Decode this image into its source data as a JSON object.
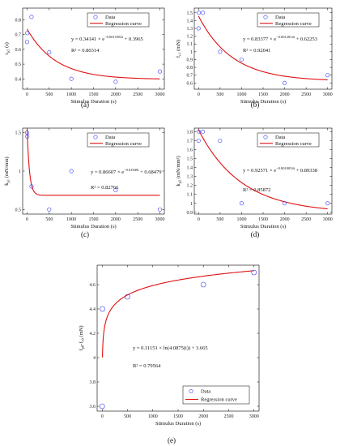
{
  "chart_data": [
    {
      "id": "a",
      "panel_label": "(a)",
      "type": "scatter",
      "xlabel": "Stimulus Duration (s)",
      "ylabel": "τ_p2 (s)",
      "ylabel_main": "τ",
      "ylabel_sub": "p2",
      "ylabel_unit": " (s)",
      "xlim": [
        -100,
        3100
      ],
      "ylim": [
        0.33,
        0.88
      ],
      "xticks": [
        0,
        500,
        1000,
        1500,
        2000,
        2500,
        3000
      ],
      "yticks": [
        0.4,
        0.5,
        0.6,
        0.7,
        0.8
      ],
      "points": [
        [
          0,
          0.65
        ],
        [
          5,
          0.71
        ],
        [
          100,
          0.82
        ],
        [
          500,
          0.58
        ],
        [
          1000,
          0.4
        ],
        [
          2000,
          0.38
        ],
        [
          3000,
          0.45
        ]
      ],
      "curve": {
        "kind": "exp",
        "a": 0.34141,
        "b": -0.0015382,
        "c": 0.3965
      },
      "equation": "y = 0.34141 × e^(−0.0015382t) + 0.3965",
      "equation_parts": {
        "prefix": "y = 0.34141 × e",
        "exponent": "−0.0015382t",
        "suffix": " + 0.3965"
      },
      "r2": "R² = 0.80314",
      "legend": [
        "Data",
        "Regression curve"
      ]
    },
    {
      "id": "b",
      "panel_label": "(b)",
      "type": "scatter",
      "xlabel": "Stimulus Duration (s)",
      "ylabel": "f_c1 (mN)",
      "ylabel_main": "f",
      "ylabel_sub": "c1",
      "ylabel_unit": " (mN)",
      "xlim": [
        -100,
        3100
      ],
      "ylim": [
        0.52,
        1.56
      ],
      "xticks": [
        0,
        500,
        1000,
        1500,
        2000,
        2500,
        3000
      ],
      "yticks": [
        0.6,
        0.7,
        0.8,
        0.9,
        1.0,
        1.1,
        1.2,
        1.3,
        1.4,
        1.5
      ],
      "points": [
        [
          0,
          1.3
        ],
        [
          5,
          1.5
        ],
        [
          100,
          1.5
        ],
        [
          500,
          1.0
        ],
        [
          1000,
          0.9
        ],
        [
          2000,
          0.6
        ],
        [
          3000,
          0.7
        ]
      ],
      "curve": {
        "kind": "exp",
        "a": 0.83377,
        "b": -0.0012814,
        "c": 0.62253
      },
      "equation": "y = 0.83377 × e^(−0.0012814t) + 0.62253",
      "equation_parts": {
        "prefix": "y = 0.83377 × e",
        "exponent": "−0.0012814t",
        "suffix": " + 0.62253"
      },
      "r2": "R² = 0.92041",
      "legend": [
        "Data",
        "Regression curve"
      ]
    },
    {
      "id": "c",
      "panel_label": "(c)",
      "type": "scatter",
      "xlabel": "Stimulus Duration (s)",
      "ylabel": "k_p1 (mN/mm)",
      "ylabel_main": "k",
      "ylabel_sub": "p1",
      "ylabel_unit": " (mN/mm)",
      "xlim": [
        -100,
        3100
      ],
      "ylim": [
        0.44,
        1.56
      ],
      "xticks": [
        0,
        500,
        1000,
        1500,
        2000,
        2500,
        3000
      ],
      "yticks": [
        0.5,
        1.0,
        1.5
      ],
      "points": [
        [
          0,
          1.5
        ],
        [
          5,
          1.45
        ],
        [
          100,
          0.8
        ],
        [
          500,
          0.5
        ],
        [
          1000,
          1.0
        ],
        [
          2000,
          0.75
        ],
        [
          3000,
          0.5
        ]
      ],
      "curve": {
        "kind": "exp",
        "a": 0.86607,
        "b": -0.01849,
        "c": 0.68479
      },
      "equation": "y = 0.86607 × e^(−0.01849t) + 0.68479",
      "equation_parts": {
        "prefix": "y = 0.86607 × e",
        "exponent": "−0.01849t",
        "suffix": " + 0.68479"
      },
      "r2": "R² = 0.82766",
      "legend": [
        "Data",
        "Regression curve"
      ]
    },
    {
      "id": "d",
      "panel_label": "(d)",
      "type": "scatter",
      "xlabel": "Stimulus Duration (s)",
      "ylabel": "k_p2 (mN/mm²)",
      "ylabel_main": "k",
      "ylabel_sub": "p2",
      "ylabel_unit": " (mN/mm²)",
      "xlim": [
        -100,
        3100
      ],
      "ylim": [
        0.88,
        1.84
      ],
      "xticks": [
        0,
        500,
        1000,
        1500,
        2000,
        2500,
        3000
      ],
      "yticks": [
        0.9,
        1.0,
        1.1,
        1.2,
        1.3,
        1.4,
        1.5,
        1.6,
        1.7,
        1.8
      ],
      "points": [
        [
          0,
          1.7
        ],
        [
          5,
          1.8
        ],
        [
          100,
          1.8
        ],
        [
          500,
          1.7
        ],
        [
          1000,
          1.0
        ],
        [
          2000,
          1.0
        ],
        [
          3000,
          1.0
        ]
      ],
      "curve": {
        "kind": "exp",
        "a": 0.92571,
        "b": -0.0010054,
        "c": 0.89338
      },
      "equation": "y = 0.92571 × e^(−0.0010054t) + 0.89338",
      "equation_parts": {
        "prefix": "y = 0.92571 × e",
        "exponent": "−0.0010054t",
        "suffix": " + 0.89338"
      },
      "r2": "R² = 0.85872",
      "legend": [
        "Data",
        "Regression curve"
      ]
    },
    {
      "id": "e",
      "panel_label": "(e)",
      "type": "scatter",
      "xlabel": "Stimulus Duration (s)",
      "ylabel": "f_p0-f_c0 (mN)",
      "ylabel_main": "f",
      "ylabel_sub": "p0",
      "ylabel_mid": "-f",
      "ylabel_sub2": "c0",
      "ylabel_unit": " (mN)",
      "xlim": [
        -100,
        3100
      ],
      "ylim": [
        3.56,
        4.76
      ],
      "xticks": [
        0,
        500,
        1000,
        1500,
        2000,
        2500,
        3000
      ],
      "yticks": [
        3.6,
        3.8,
        4.0,
        4.2,
        4.4,
        4.6
      ],
      "points": [
        [
          0,
          3.6
        ],
        [
          5,
          4.4
        ],
        [
          500,
          4.5
        ],
        [
          2000,
          4.6
        ],
        [
          3000,
          4.7
        ]
      ],
      "curve": {
        "kind": "log",
        "a": 0.11151,
        "k": 4.0875,
        "c": 3.665,
        "x0": 5
      },
      "equation": "y = 0.11151 × ln(4.0875(t)) + 3.665",
      "r2": "R² = 0.79564",
      "legend": [
        "Data",
        "Regression curve"
      ]
    }
  ],
  "colors": {
    "data": "#3a3af0",
    "curve": "#e01010",
    "axis": "#000000"
  }
}
